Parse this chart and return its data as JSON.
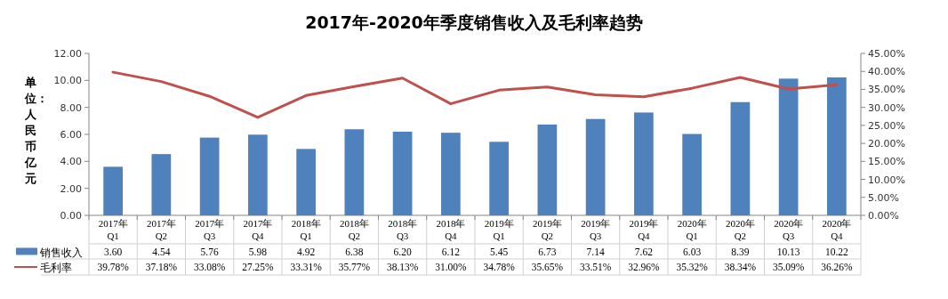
{
  "chart_data": {
    "type": "bar",
    "title": "2017年-2020年季度销售收入及毛利率趋势",
    "ylabel": "单位：人民币亿元",
    "categories": [
      "2017年 Q1",
      "2017年 Q2",
      "2017年 Q3",
      "2017年 Q4",
      "2018年 Q1",
      "2018年 Q2",
      "2018年 Q3",
      "2018年 Q4",
      "2019年 Q1",
      "2019年 Q2",
      "2019年 Q3",
      "2019年 Q4",
      "2020年 Q1",
      "2020年 Q2",
      "2020年 Q3",
      "2020年 Q4"
    ],
    "series": [
      {
        "name": "销售收入",
        "color": "#4f81bd",
        "values": [
          3.6,
          4.54,
          5.76,
          5.98,
          4.92,
          6.38,
          6.2,
          6.12,
          5.45,
          6.73,
          7.14,
          7.62,
          6.03,
          8.39,
          10.13,
          10.22
        ],
        "value_labels": [
          "3.60",
          "4.54",
          "5.76",
          "5.98",
          "4.92",
          "6.38",
          "6.20",
          "6.12",
          "5.45",
          "6.73",
          "7.14",
          "7.62",
          "6.03",
          "8.39",
          "10.13",
          "10.22"
        ]
      },
      {
        "name": "毛利率",
        "type": "line",
        "axis": "y2",
        "color": "#c0504d",
        "values": [
          39.78,
          37.18,
          33.08,
          27.25,
          33.31,
          35.77,
          38.13,
          31.0,
          34.78,
          35.65,
          33.51,
          32.96,
          35.32,
          38.34,
          35.09,
          36.26
        ],
        "value_labels": [
          "39.78%",
          "37.18%",
          "33.08%",
          "27.25%",
          "33.31%",
          "35.77%",
          "38.13%",
          "31.00%",
          "34.78%",
          "35.65%",
          "33.51%",
          "32.96%",
          "35.32%",
          "38.34%",
          "35.09%",
          "36.26%"
        ]
      }
    ],
    "ylim": [
      0,
      12
    ],
    "yticks": [
      {
        "value": 0,
        "label": "0.00"
      },
      {
        "value": 2,
        "label": "2.00"
      },
      {
        "value": 4,
        "label": "4.00"
      },
      {
        "value": 6,
        "label": "6.00"
      },
      {
        "value": 8,
        "label": "8.00"
      },
      {
        "value": 10,
        "label": "10.00"
      },
      {
        "value": 12,
        "label": "12.00"
      }
    ],
    "y2lim": [
      0,
      45
    ],
    "y2ticks": [
      {
        "value": 0,
        "label": "0.00%"
      },
      {
        "value": 5,
        "label": "5.00%"
      },
      {
        "value": 10,
        "label": "10.00%"
      },
      {
        "value": 15,
        "label": "15.00%"
      },
      {
        "value": 20,
        "label": "20.00%"
      },
      {
        "value": 25,
        "label": "25.00%"
      },
      {
        "value": 30,
        "label": "30.00%"
      },
      {
        "value": 35,
        "label": "35.00%"
      },
      {
        "value": 40,
        "label": "40.00%"
      },
      {
        "value": 45,
        "label": "45.00%"
      }
    ],
    "legend": "bottom",
    "grid": false,
    "marker": "none",
    "line_style": "solid"
  }
}
